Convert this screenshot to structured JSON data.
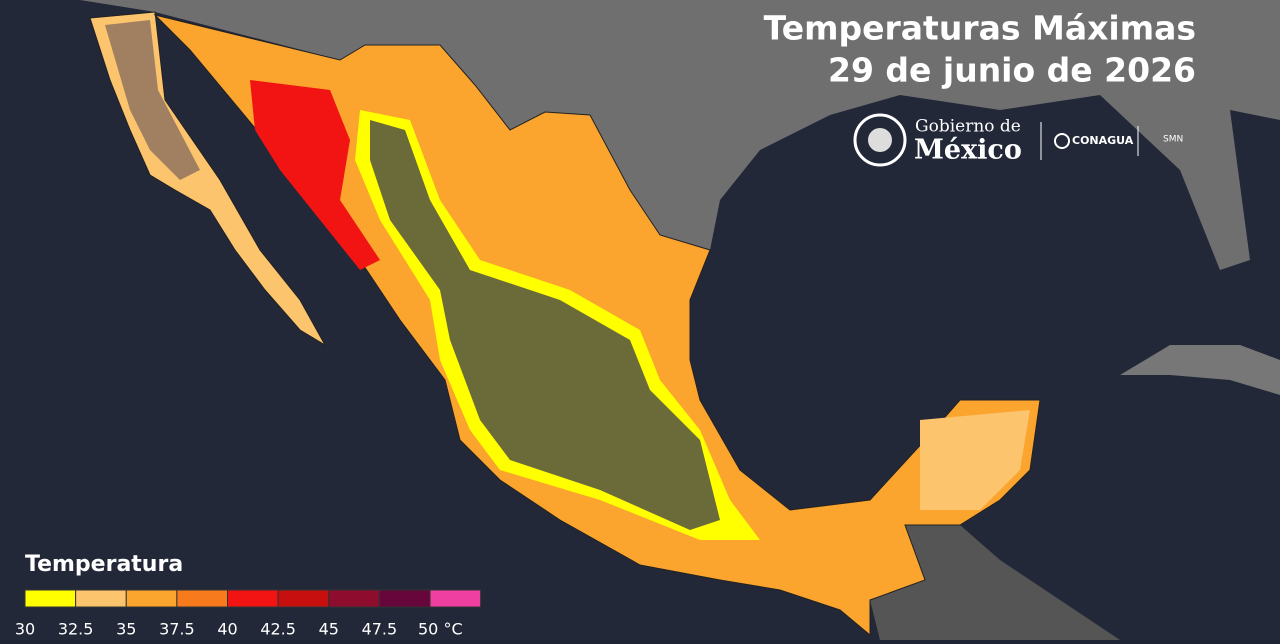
{
  "header": {
    "title": [
      "Temperaturas Máximas",
      "29 de junio de 2026"
    ]
  },
  "logos": {
    "gobierno": [
      "Gobierno de",
      "México"
    ],
    "conagua": "CONAGUA",
    "smn": "SMN"
  },
  "legend": {
    "title": "Temperatura",
    "colors": [
      "#ffff00",
      "#fdc46e",
      "#fba42e",
      "#f77b1c",
      "#f21313",
      "#c80f0f",
      "#8e0c2d",
      "#66063a",
      "#ef3fa0"
    ],
    "ticks": [
      30,
      32.5,
      35,
      37.5,
      40,
      42.5,
      45,
      47.5,
      {
        "value": 50,
        "label": "50 °C"
      }
    ]
  }
}
